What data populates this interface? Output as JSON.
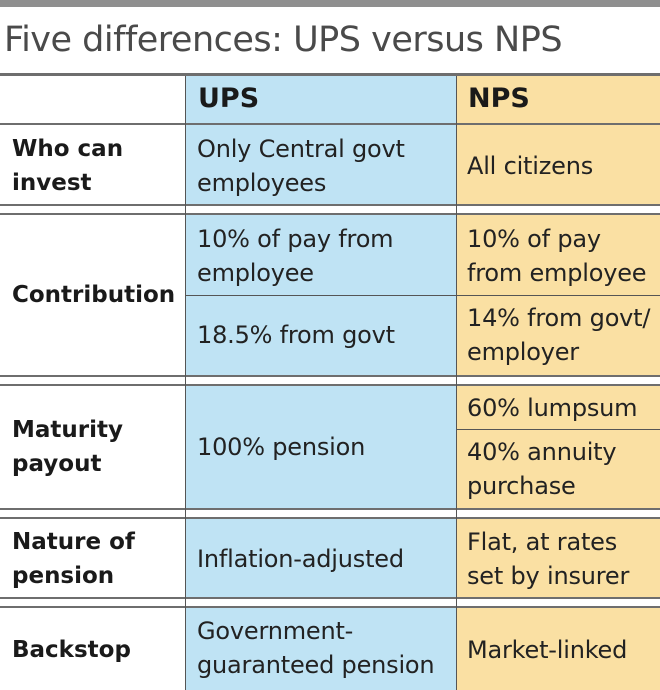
{
  "title": "Five differences: UPS versus NPS",
  "columns": {
    "ups": "UPS",
    "nps": "NPS"
  },
  "colors": {
    "ups_fill": "#bfe3f4",
    "nps_fill": "#fae0a3",
    "rule": "#6e6e6e"
  },
  "rows": [
    {
      "label": [
        "Who can",
        "invest"
      ],
      "ups": [
        [
          "Only Central govt",
          "employees"
        ]
      ],
      "nps": [
        [
          "All citizens"
        ]
      ]
    },
    {
      "label": [
        "Contribution"
      ],
      "ups": [
        [
          "10% of pay from",
          "employee"
        ],
        [
          "18.5% from govt"
        ]
      ],
      "nps": [
        [
          "10% of pay",
          "from employee"
        ],
        [
          "14% from govt/",
          "employer"
        ]
      ]
    },
    {
      "label": [
        "Maturity",
        "payout"
      ],
      "ups": [
        [
          "100% pension"
        ]
      ],
      "nps": [
        [
          "60% lumpsum"
        ],
        [
          "40% annuity",
          "purchase"
        ]
      ]
    },
    {
      "label": [
        "Nature of",
        "pension"
      ],
      "ups": [
        [
          "Inflation-adjusted"
        ]
      ],
      "nps": [
        [
          "Flat, at rates",
          "set by insurer"
        ]
      ]
    },
    {
      "label": [
        "Backstop"
      ],
      "ups": [
        [
          "Government-",
          "guaranteed pension"
        ]
      ],
      "nps": [
        [
          "Market-linked"
        ]
      ]
    }
  ]
}
